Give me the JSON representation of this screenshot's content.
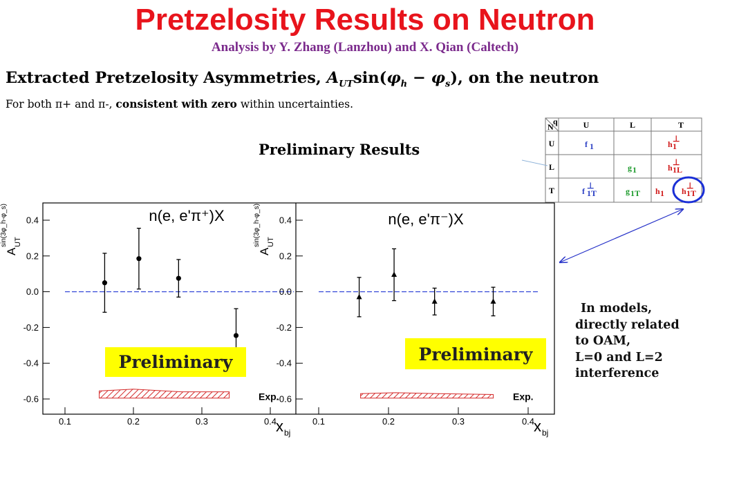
{
  "title": "Pretzelosity Results on Neutron",
  "subtitle": "Analysis by Y. Zhang (Lanzhou) and X. Qian (Caltech)",
  "heading": {
    "prefix": "Extracted Pretzelosity Asymmetries, ",
    "A": "A",
    "UT": "UT",
    "sin": "sin(",
    "phi_h": "φ",
    "h": "h",
    "minus": " − ",
    "phi_s": "φ",
    "s": "s",
    "close": "),",
    "suffix": " on the neutron"
  },
  "subline": {
    "part1": "For both π+ and π-, ",
    "bold": "consistent with zero",
    "part2": " within uncertainties."
  },
  "preliminary_results": "Preliminary Results",
  "side_text": [
    "In models,",
    "directly related",
    "to OAM,",
    "L=0 and L=2",
    "interference"
  ],
  "tmd_table": {
    "corner_n": "N",
    "corner_q": "q",
    "col_headers": [
      "U",
      "L",
      "T"
    ],
    "row_headers": [
      "U",
      "L",
      "T"
    ],
    "cells": {
      "U_U": "f",
      "U_U_sub": "1",
      "U_T": "h",
      "U_T_sub": "1",
      "U_T_sup": "⊥",
      "L_L": "g",
      "L_L_sub": "1",
      "L_T": "h",
      "L_T_sub": "1L",
      "L_T_sup": "⊥",
      "T_U": "f",
      "T_U_sub": "1T",
      "T_U_sup": "⊥",
      "T_L": "g",
      "T_L_sub": "1T",
      "T_T1": "h",
      "T_T1_sub": "1",
      "T_T2": "h",
      "T_T2_sub": "1T",
      "T_T2_sup": "⊥"
    },
    "colors": {
      "blue": "#2b3fc4",
      "green": "#1d9a2c",
      "red": "#d01818",
      "highlight": "#1a2fd6"
    }
  },
  "chart_data": [
    {
      "type": "scatter",
      "title": "n(e, e'π⁺)X",
      "xlabel": "x",
      "xlabel_sub": "bj",
      "ylabel_main": "A",
      "ylabel_sub": "UT",
      "ylabel_sup": "sin(3φ_h-φ_s)",
      "xlim": [
        0.05,
        0.42
      ],
      "ylim": [
        -0.68,
        0.48
      ],
      "xticks": [
        "0.1",
        "0.2",
        "0.3",
        "0.4"
      ],
      "yticks": [
        "0.4",
        "0.2",
        "0.0",
        "-0.2",
        "-0.4",
        "-0.6"
      ],
      "marker": "circle",
      "points": [
        {
          "x": 0.158,
          "y": 0.05,
          "err": 0.165
        },
        {
          "x": 0.208,
          "y": 0.185,
          "err": 0.17
        },
        {
          "x": 0.266,
          "y": 0.075,
          "err": 0.105
        },
        {
          "x": 0.35,
          "y": -0.245,
          "err": 0.15
        }
      ],
      "zero_line": 0.0,
      "systematic": {
        "label": "Exp.",
        "x": [
          0.15,
          0.2,
          0.27,
          0.34
        ],
        "low": -0.595,
        "high": [
          -0.555,
          -0.545,
          -0.56,
          -0.56
        ]
      },
      "stamp": "Preliminary"
    },
    {
      "type": "scatter",
      "title": "n(e, e'π⁻)X",
      "xlabel": "x",
      "xlabel_sub": "bj",
      "ylabel_main": "A",
      "ylabel_sub": "UT",
      "ylabel_sup": "sin(3φ_h-φ_s)",
      "xlim": [
        0.05,
        0.42
      ],
      "ylim": [
        -0.68,
        0.48
      ],
      "xticks": [
        "0.1",
        "0.2",
        "0.3",
        "0.4"
      ],
      "yticks": [
        "0.4",
        "0.2",
        "0.0",
        "-0.2",
        "-0.4",
        "-0.6"
      ],
      "marker": "triangle",
      "points": [
        {
          "x": 0.158,
          "y": -0.03,
          "err": 0.11
        },
        {
          "x": 0.208,
          "y": 0.095,
          "err": 0.145
        },
        {
          "x": 0.266,
          "y": -0.055,
          "err": 0.075
        },
        {
          "x": 0.35,
          "y": -0.055,
          "err": 0.08
        }
      ],
      "zero_line": 0.0,
      "systematic": {
        "label": "Exp.",
        "x": [
          0.16,
          0.21,
          0.27,
          0.35
        ],
        "low": -0.595,
        "high": [
          -0.57,
          -0.565,
          -0.57,
          -0.575
        ]
      },
      "stamp": "Preliminary"
    }
  ]
}
